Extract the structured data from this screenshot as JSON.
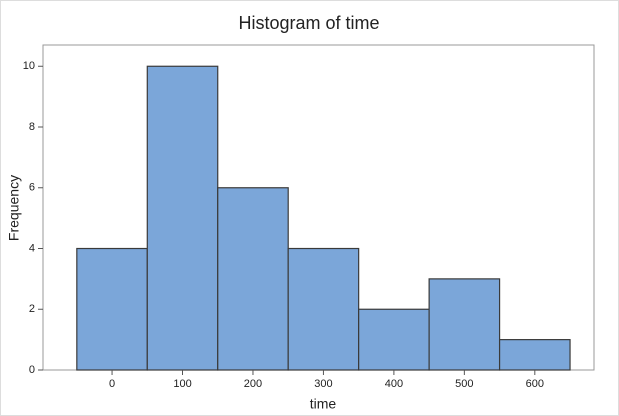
{
  "chart_data": {
    "type": "histogram",
    "title": "Histogram of time",
    "xlabel": "time",
    "ylabel": "Frequency",
    "bins": [
      -50,
      50,
      150,
      250,
      350,
      450,
      550,
      650
    ],
    "values": [
      4,
      10,
      6,
      4,
      2,
      3,
      1
    ],
    "color": "#7ba6d9",
    "xlim": [
      -98,
      684
    ],
    "xticks": [
      0,
      100,
      200,
      300,
      400,
      500,
      600
    ],
    "ylim": [
      0,
      10.7
    ],
    "yticks": [
      0,
      2,
      4,
      6,
      8,
      10
    ]
  }
}
